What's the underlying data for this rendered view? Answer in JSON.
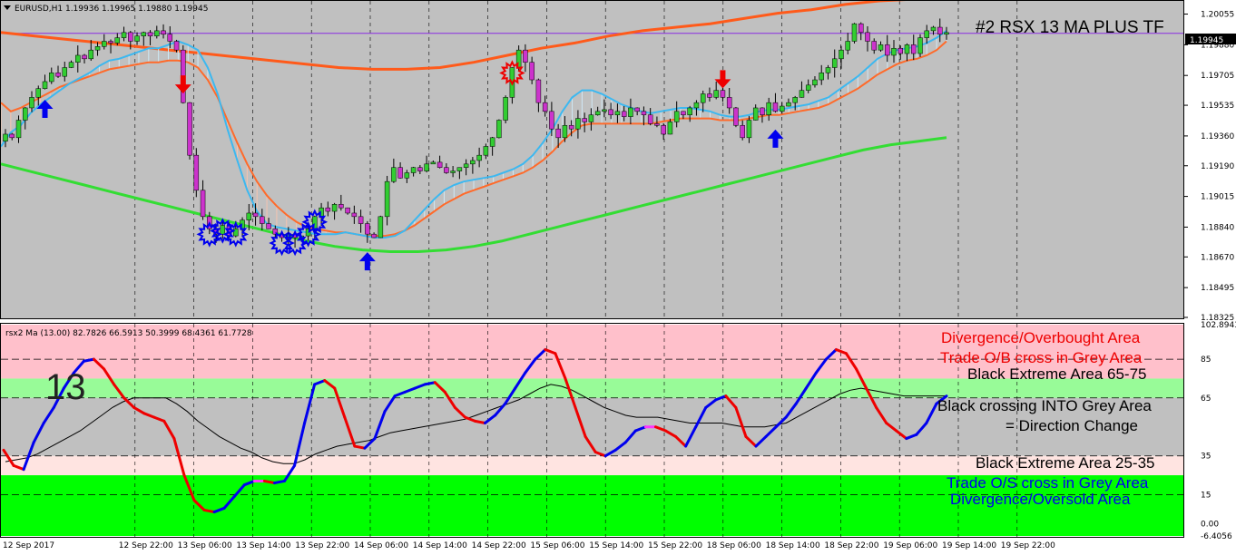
{
  "window": {
    "symbol_title": "EURUSD,H1  1.19936 1.19965 1.19880 1.19945",
    "chart_title": "#2 RSX 13 MA PLUS TF",
    "current_price": "1.19945",
    "collapse_icon": "triangle-down-icon"
  },
  "indicator": {
    "title": "rsx2 Ma (13.00) 82.7826 66.5913 50.3999 68.4361 61.7728",
    "watermark": "13"
  },
  "notes": {
    "divergence_ob": "Divergence/Overbought Area",
    "trade_ob": "Trade O/B cross in Grey Area",
    "black_extreme_high": "Black Extreme Area 65-75",
    "black_cross_1": "Black crossing INTO Grey Area",
    "black_cross_2": "= Direction Change",
    "black_extreme_low": "Black Extreme Area 25-35",
    "trade_os": "Trade O/S cross in Grey Area",
    "divergence_os": "Divergence/Oversold Area"
  },
  "colors": {
    "background": "#c0c0c0",
    "bull_candle": "#32cd32",
    "bear_candle": "#cc33cc",
    "ema_fast": "#3cb8f0",
    "ema_slow": "#ff6a2a",
    "ema_long": "#ff5a1a",
    "ma_green": "#33dd33",
    "rsx_up": "#0000ee",
    "rsx_down": "#ee0000",
    "rsx_flat": "#ff33ff",
    "signal_line": "#000000",
    "zone_overbought": "#ffc0cb",
    "zone_grey_high": "#98fb98",
    "zone_grey_low": "#ffe4e1",
    "zone_oversold": "#00ff00",
    "price_line": "#8a2be2"
  },
  "chart_data": [
    {
      "type": "candlestick",
      "title": "EURUSD,H1",
      "y_ticks": [
        "1.20055",
        "1.19880",
        "1.19705",
        "1.19535",
        "1.19360",
        "1.19190",
        "1.19015",
        "1.18840",
        "1.18670",
        "1.18495",
        "1.18325"
      ],
      "ylim": [
        1.18325,
        1.20125
      ],
      "x_ticks": [
        "12 Sep 2017",
        "12 Sep 22:00",
        "13 Sep 06:00",
        "13 Sep 14:00",
        "13 Sep 22:00",
        "14 Sep 06:00",
        "14 Sep 14:00",
        "14 Sep 22:00",
        "15 Sep 06:00",
        "15 Sep 14:00",
        "15 Sep 22:00",
        "18 Sep 06:00",
        "18 Sep 14:00",
        "18 Sep 22:00",
        "19 Sep 06:00",
        "19 Sep 14:00",
        "19 Sep 22:00"
      ],
      "closes": [
        1.1937,
        1.1935,
        1.1945,
        1.1952,
        1.1958,
        1.1963,
        1.1967,
        1.1972,
        1.197,
        1.1975,
        1.1978,
        1.1982,
        1.198,
        1.1985,
        1.1987,
        1.199,
        1.1989,
        1.1992,
        1.1995,
        1.199,
        1.1993,
        1.1995,
        1.1993,
        1.1996,
        1.1994,
        1.199,
        1.1985,
        1.1955,
        1.1925,
        1.1905,
        1.189,
        1.1883,
        1.188,
        1.1885,
        1.1879,
        1.1883,
        1.1888,
        1.1892,
        1.189,
        1.1886,
        1.1883,
        1.188,
        1.1878,
        1.188,
        1.1878,
        1.1879,
        1.1883,
        1.189,
        1.1895,
        1.1893,
        1.1897,
        1.1895,
        1.1892,
        1.189,
        1.1886,
        1.188,
        1.1878,
        1.189,
        1.191,
        1.1918,
        1.1912,
        1.1915,
        1.1918,
        1.1916,
        1.192,
        1.1921,
        1.1918,
        1.1915,
        1.1916,
        1.1918,
        1.192,
        1.1922,
        1.1925,
        1.193,
        1.1935,
        1.1945,
        1.1958,
        1.1975,
        1.1985,
        1.1978,
        1.1968,
        1.1955,
        1.195,
        1.194,
        1.1935,
        1.1942,
        1.194,
        1.1946,
        1.1944,
        1.1948,
        1.195,
        1.1951,
        1.1948,
        1.195,
        1.1947,
        1.1952,
        1.195,
        1.1948,
        1.1943,
        1.1942,
        1.1937,
        1.1944,
        1.195,
        1.1948,
        1.1952,
        1.1955,
        1.196,
        1.1958,
        1.1962,
        1.1958,
        1.1952,
        1.1942,
        1.1935,
        1.1945,
        1.1952,
        1.1948,
        1.1955,
        1.195,
        1.1953,
        1.1955,
        1.1958,
        1.1962,
        1.1965,
        1.1968,
        1.1972,
        1.1975,
        1.198,
        1.1985,
        1.199,
        1.2,
        1.1995,
        1.199,
        1.1985,
        1.1988,
        1.1982,
        1.1986,
        1.1983,
        1.1988,
        1.1983,
        1.1992,
        1.1996,
        1.1998,
        1.1994,
        1.1995
      ],
      "ema_fast": [
        1.193,
        1.1938,
        1.1942,
        1.1949,
        1.1954,
        1.1958,
        1.1962,
        1.1966,
        1.1969,
        1.1972,
        1.1976,
        1.1979,
        1.198,
        1.1982,
        1.1984,
        1.1986,
        1.1986,
        1.1988,
        1.199,
        1.1988,
        1.1985,
        1.1975,
        1.196,
        1.194,
        1.1922,
        1.1905,
        1.1893,
        1.1886,
        1.1884,
        1.1883,
        1.1882,
        1.1881,
        1.188,
        1.188,
        1.188,
        1.1881,
        1.188,
        1.1879,
        1.1878,
        1.1878,
        1.1879,
        1.1882,
        1.1888,
        1.1894,
        1.19,
        1.1905,
        1.1908,
        1.191,
        1.1911,
        1.1912,
        1.1913,
        1.1915,
        1.1917,
        1.192,
        1.1925,
        1.1932,
        1.194,
        1.195,
        1.1958,
        1.1962,
        1.1962,
        1.196,
        1.1957,
        1.1954,
        1.1952,
        1.195,
        1.1949,
        1.195,
        1.1951,
        1.1952,
        1.1952,
        1.1951,
        1.195,
        1.1948,
        1.1947,
        1.1947,
        1.1948,
        1.195,
        1.1951,
        1.1951,
        1.1952,
        1.1953,
        1.1954,
        1.1956,
        1.1958,
        1.1962,
        1.1966,
        1.197,
        1.1975,
        1.198,
        1.1983,
        1.1985,
        1.1986,
        1.1987,
        1.1989,
        1.1992,
        1.1996
      ],
      "ema_slow": [
        1.1955,
        1.195,
        1.1952,
        1.1955,
        1.1958,
        1.1961,
        1.1964,
        1.1966,
        1.1968,
        1.197,
        1.1972,
        1.1974,
        1.1975,
        1.1976,
        1.1977,
        1.1978,
        1.1978,
        1.1979,
        1.1979,
        1.1978,
        1.1975,
        1.1968,
        1.1958,
        1.1945,
        1.1932,
        1.192,
        1.191,
        1.1902,
        1.1896,
        1.1891,
        1.1887,
        1.1884,
        1.1883,
        1.1882,
        1.1881,
        1.1881,
        1.188,
        1.1879,
        1.1879,
        1.1879,
        1.188,
        1.1882,
        1.1885,
        1.1889,
        1.1893,
        1.1897,
        1.19,
        1.1903,
        1.1905,
        1.1907,
        1.1909,
        1.1911,
        1.1913,
        1.1915,
        1.1918,
        1.1922,
        1.1927,
        1.1933,
        1.1938,
        1.1942,
        1.1943,
        1.1943,
        1.1943,
        1.1943,
        1.1943,
        1.1943,
        1.1943,
        1.1944,
        1.1945,
        1.1946,
        1.1946,
        1.1946,
        1.1946,
        1.1945,
        1.1945,
        1.1945,
        1.1946,
        1.1947,
        1.1948,
        1.1948,
        1.1949,
        1.195,
        1.1951,
        1.1952,
        1.1954,
        1.1957,
        1.196,
        1.1963,
        1.1967,
        1.1971,
        1.1974,
        1.1977,
        1.1979,
        1.198,
        1.1982,
        1.1985,
        1.199
      ],
      "ema_long": [
        1.1995,
        1.1993,
        1.1991,
        1.1989,
        1.1987,
        1.1985,
        1.1983,
        1.1981,
        1.1979,
        1.1977,
        1.1975,
        1.1974,
        1.1974,
        1.1975,
        1.1978,
        1.1982,
        1.1986,
        1.1989,
        1.1993,
        1.1996,
        1.1998,
        1.2,
        1.2003,
        1.2006,
        1.2008,
        1.2011,
        1.2013,
        1.2014,
        1.2015
      ],
      "ma_green": [
        1.192,
        1.1916,
        1.1912,
        1.1908,
        1.1904,
        1.19,
        1.1896,
        1.1892,
        1.1888,
        1.1884,
        1.188,
        1.1876,
        1.1873,
        1.1871,
        1.187,
        1.187,
        1.1871,
        1.1873,
        1.1876,
        1.188,
        1.1884,
        1.1888,
        1.1892,
        1.1896,
        1.19,
        1.1904,
        1.1908,
        1.1912,
        1.1916,
        1.192,
        1.1924,
        1.1928,
        1.1931,
        1.1933,
        1.1935
      ],
      "price_line": 1.19945
    },
    {
      "type": "line",
      "title": "rsx2 Ma (13.00)",
      "y_ticks": [
        "102.8943",
        "85",
        "65",
        "35",
        "15",
        "0.00",
        "-6.4056"
      ],
      "ylim": [
        -6.4056,
        102.8943
      ],
      "zones": [
        {
          "name": "overbought",
          "from": 75,
          "to": 102.8943
        },
        {
          "name": "grey_high",
          "from": 65,
          "to": 75
        },
        {
          "name": "grey_mid",
          "from": 35,
          "to": 65
        },
        {
          "name": "grey_low",
          "from": 25,
          "to": 35
        },
        {
          "name": "oversold",
          "from": -6.4056,
          "to": 25
        }
      ],
      "levels": [
        85,
        65,
        35,
        15
      ],
      "rsx": [
        38,
        30,
        28,
        42,
        52,
        60,
        70,
        78,
        84,
        85,
        80,
        72,
        65,
        60,
        57,
        55,
        53,
        44,
        25,
        12,
        7,
        6,
        8,
        14,
        20,
        22,
        22,
        21,
        22,
        30,
        52,
        72,
        74,
        70,
        55,
        40,
        39,
        44,
        58,
        66,
        68,
        70,
        72,
        73,
        68,
        60,
        55,
        53,
        52,
        56,
        62,
        70,
        78,
        85,
        90,
        88,
        75,
        60,
        45,
        37,
        35,
        38,
        42,
        48,
        50,
        50,
        48,
        45,
        40,
        50,
        60,
        64,
        66,
        60,
        45,
        40,
        45,
        50,
        55,
        62,
        70,
        78,
        85,
        90,
        88,
        80,
        70,
        60,
        52,
        48,
        44,
        46,
        52,
        62,
        66
      ],
      "signal": [
        32,
        33,
        34,
        36,
        39,
        42,
        45,
        48,
        52,
        56,
        60,
        63,
        65,
        65,
        65,
        65,
        62,
        58,
        53,
        49,
        45,
        42,
        39,
        37,
        34,
        32,
        31,
        31,
        33,
        36,
        38,
        40,
        41,
        42,
        43,
        45,
        47,
        48,
        49,
        50,
        51,
        52,
        53,
        54,
        56,
        58,
        60,
        62,
        64,
        67,
        70,
        72,
        71,
        69,
        66,
        63,
        60,
        58,
        56,
        55,
        55,
        55,
        54,
        53,
        52,
        52,
        52,
        52,
        51,
        50,
        50,
        50,
        51,
        52,
        55,
        58,
        61,
        64,
        67,
        69,
        70,
        69,
        68,
        67,
        66,
        66,
        66,
        66,
        66
      ]
    }
  ]
}
